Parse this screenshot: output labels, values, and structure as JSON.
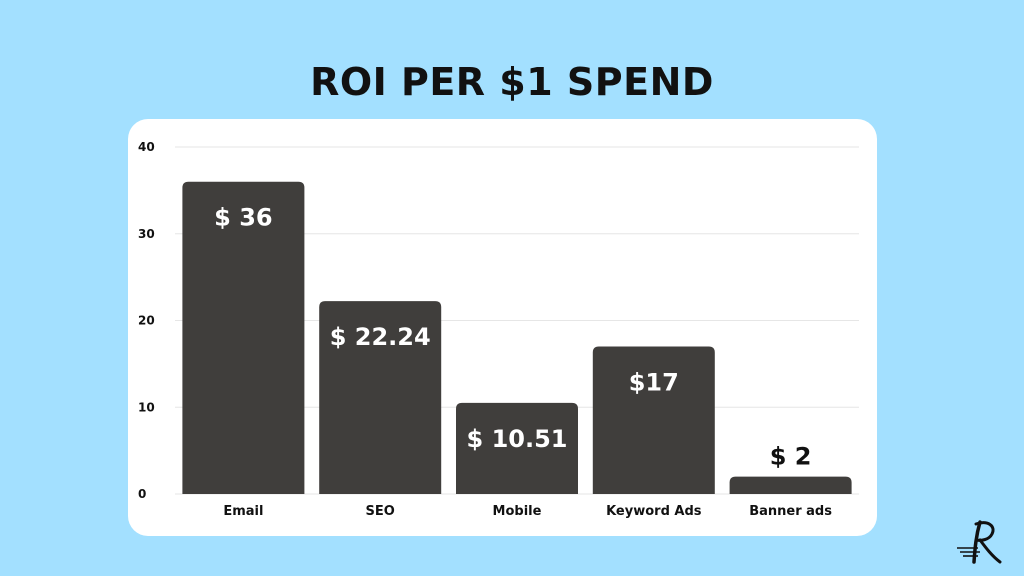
{
  "chart_data": {
    "type": "bar",
    "title": "ROI PER $1 SPEND",
    "xlabel": "",
    "ylabel": "",
    "categories": [
      "Email",
      "SEO",
      "Mobile",
      "Keyword Ads",
      "Banner ads"
    ],
    "values": [
      36,
      22.24,
      10.51,
      17,
      2
    ],
    "data_labels": [
      "$ 36",
      "$ 22.24",
      "$ 10.51",
      "$17",
      "$ 2"
    ],
    "ylim": [
      0,
      40
    ],
    "yticks": [
      "0",
      "10",
      "20",
      "30",
      "40"
    ],
    "grid": true,
    "legend": "none",
    "colors": {
      "bar": "#403e3c",
      "label_inside": "#ffffff",
      "label_outside": "#111111",
      "grid": "#e6e6e6",
      "background": "#a3e0ff",
      "panel": "#ffffff"
    }
  },
  "logo": {
    "icon": "letter-r-logo-icon"
  }
}
